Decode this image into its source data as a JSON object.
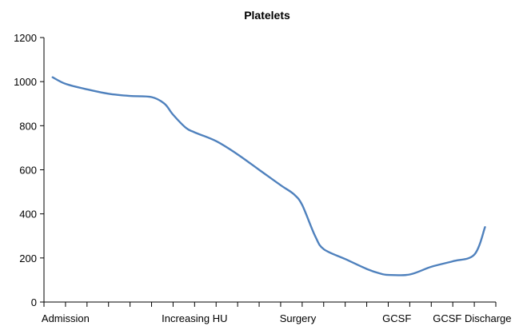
{
  "chart_data": {
    "type": "line",
    "title": "Platelets",
    "xlabel": "",
    "ylabel": "",
    "ylim": [
      0,
      1200
    ],
    "yticks": [
      0,
      200,
      400,
      600,
      800,
      1000,
      1200
    ],
    "grid": false,
    "legend": "none",
    "x_ticks_count": 21,
    "x_range": [
      0,
      21
    ],
    "x_labels": [
      {
        "x": 1,
        "label": "Admission"
      },
      {
        "x": 7,
        "label": "Increasing HU"
      },
      {
        "x": 11.8,
        "label": "Surgery"
      },
      {
        "x": 16.4,
        "label": "GCSF"
      },
      {
        "x": 19.9,
        "label": "GCSF Discharge"
      }
    ],
    "series": [
      {
        "color": "#4f81bd",
        "x": [
          0.4,
          1.0,
          2.0,
          3.0,
          4.0,
          5.0,
          5.6,
          6.0,
          6.6,
          7.0,
          8.0,
          9.0,
          10.0,
          11.0,
          11.6,
          12.0,
          12.6,
          13.0,
          14.0,
          15.0,
          15.6,
          16.0,
          17.0,
          18.0,
          19.0,
          20.0,
          20.5
        ],
        "y": [
          1020,
          990,
          965,
          945,
          935,
          930,
          900,
          850,
          790,
          770,
          730,
          670,
          600,
          530,
          490,
          440,
          300,
          240,
          195,
          150,
          130,
          123,
          125,
          160,
          185,
          215,
          340
        ]
      }
    ]
  }
}
